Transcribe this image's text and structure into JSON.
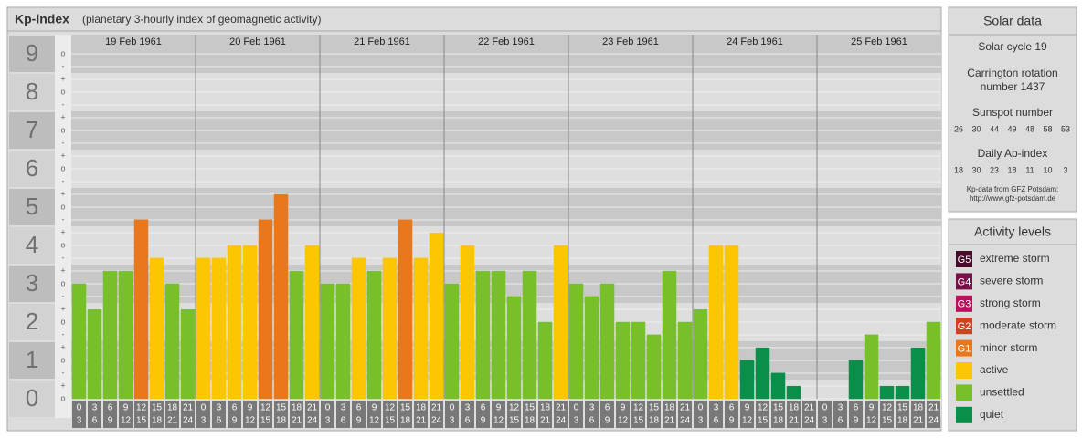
{
  "chart_data": {
    "type": "bar",
    "title": "Kp-index",
    "subtitle": "(planetary 3-hourly index of geomagnetic activity)",
    "ylim": [
      -0.5,
      9.5
    ],
    "yticks": [
      0,
      1,
      2,
      3,
      4,
      5,
      6,
      7,
      8,
      9
    ],
    "sub_tick_labels": [
      "-",
      "o",
      "+"
    ],
    "days": [
      {
        "date": "19 Feb 1961",
        "hours": [
          [
            0,
            3
          ],
          [
            3,
            6
          ],
          [
            6,
            9
          ],
          [
            9,
            12
          ],
          [
            12,
            15
          ],
          [
            15,
            18
          ],
          [
            18,
            21
          ],
          [
            21,
            24
          ]
        ],
        "values": [
          3,
          2.33,
          3.33,
          3.33,
          4.67,
          3.67,
          3,
          2.33
        ],
        "colors": [
          "#78c02a",
          "#78c02a",
          "#78c02a",
          "#78c02a",
          "#e8781b",
          "#fcc600",
          "#78c02a",
          "#78c02a"
        ]
      },
      {
        "date": "20 Feb 1961",
        "hours": [
          [
            0,
            3
          ],
          [
            3,
            6
          ],
          [
            6,
            9
          ],
          [
            9,
            12
          ],
          [
            12,
            15
          ],
          [
            15,
            18
          ],
          [
            18,
            21
          ],
          [
            21,
            24
          ]
        ],
        "values": [
          3.67,
          3.67,
          4,
          4,
          4.67,
          5.33,
          3.33,
          4
        ],
        "colors": [
          "#fcc600",
          "#fcc600",
          "#fcc600",
          "#fcc600",
          "#e8781b",
          "#e8781b",
          "#78c02a",
          "#fcc600"
        ]
      },
      {
        "date": "21 Feb 1961",
        "hours": [
          [
            0,
            3
          ],
          [
            3,
            6
          ],
          [
            6,
            9
          ],
          [
            9,
            12
          ],
          [
            12,
            15
          ],
          [
            15,
            18
          ],
          [
            18,
            21
          ],
          [
            21,
            24
          ]
        ],
        "values": [
          3,
          3,
          3.67,
          3.33,
          3.67,
          4.67,
          3.67,
          4.33
        ],
        "colors": [
          "#78c02a",
          "#78c02a",
          "#fcc600",
          "#78c02a",
          "#fcc600",
          "#e8781b",
          "#fcc600",
          "#fcc600"
        ]
      },
      {
        "date": "22 Feb 1961",
        "hours": [
          [
            0,
            3
          ],
          [
            3,
            6
          ],
          [
            6,
            9
          ],
          [
            9,
            12
          ],
          [
            12,
            15
          ],
          [
            15,
            18
          ],
          [
            18,
            21
          ],
          [
            21,
            24
          ]
        ],
        "values": [
          3,
          4,
          3.33,
          3.33,
          2.67,
          3.33,
          2,
          4
        ],
        "colors": [
          "#78c02a",
          "#fcc600",
          "#78c02a",
          "#78c02a",
          "#78c02a",
          "#78c02a",
          "#78c02a",
          "#fcc600"
        ]
      },
      {
        "date": "23 Feb 1961",
        "hours": [
          [
            0,
            3
          ],
          [
            3,
            6
          ],
          [
            6,
            9
          ],
          [
            9,
            12
          ],
          [
            12,
            15
          ],
          [
            15,
            18
          ],
          [
            18,
            21
          ],
          [
            21,
            24
          ]
        ],
        "values": [
          3,
          2.67,
          3,
          2,
          2,
          1.67,
          3.33,
          2
        ],
        "colors": [
          "#78c02a",
          "#78c02a",
          "#78c02a",
          "#78c02a",
          "#78c02a",
          "#78c02a",
          "#78c02a",
          "#78c02a"
        ]
      },
      {
        "date": "24 Feb 1961",
        "hours": [
          [
            0,
            3
          ],
          [
            3,
            6
          ],
          [
            6,
            9
          ],
          [
            9,
            12
          ],
          [
            12,
            15
          ],
          [
            15,
            18
          ],
          [
            18,
            21
          ],
          [
            21,
            24
          ]
        ],
        "values": [
          2.33,
          4,
          4,
          1,
          1.33,
          0.67,
          0.33,
          0
        ],
        "colors": [
          "#78c02a",
          "#fcc600",
          "#fcc600",
          "#0a8f4a",
          "#0a8f4a",
          "#0a8f4a",
          "#0a8f4a",
          "#0a8f4a"
        ]
      },
      {
        "date": "25 Feb 1961",
        "hours": [
          [
            0,
            3
          ],
          [
            3,
            6
          ],
          [
            6,
            9
          ],
          [
            9,
            12
          ],
          [
            12,
            15
          ],
          [
            15,
            18
          ],
          [
            18,
            21
          ],
          [
            21,
            24
          ]
        ],
        "values": [
          0,
          0,
          1,
          1.67,
          0.33,
          0.33,
          1.33,
          2
        ],
        "colors": [
          "#0a8f4a",
          "#0a8f4a",
          "#0a8f4a",
          "#78c02a",
          "#0a8f4a",
          "#0a8f4a",
          "#0a8f4a",
          "#78c02a"
        ]
      }
    ]
  },
  "solar_data": {
    "title": "Solar data",
    "cycle": "Solar cycle 19",
    "carrington_1": "Carrington rotation",
    "carrington_2": "number 1437",
    "sunspot_title": "Sunspot number",
    "sunspot": [
      26,
      30,
      44,
      49,
      48,
      58,
      53
    ],
    "ap_title": "Daily Ap-index",
    "ap": [
      18,
      30,
      23,
      18,
      11,
      10,
      3
    ],
    "source_1": "Kp-data from GFZ Potsdam:",
    "source_2": "http://www.gfz-potsdam.de"
  },
  "activity_levels": {
    "title": "Activity levels",
    "items": [
      {
        "code": "G5",
        "label": "extreme storm",
        "color": "#4a0a2a"
      },
      {
        "code": "G4",
        "label": "severe storm",
        "color": "#7a1048"
      },
      {
        "code": "G3",
        "label": "strong storm",
        "color": "#b4125a"
      },
      {
        "code": "G2",
        "label": "moderate storm",
        "color": "#d2401f"
      },
      {
        "code": "G1",
        "label": "minor storm",
        "color": "#e8781b"
      },
      {
        "label": "active",
        "color": "#fcc600"
      },
      {
        "label": "unsettled",
        "color": "#78c02a"
      },
      {
        "label": "quiet",
        "color": "#0a8f4a"
      }
    ]
  }
}
